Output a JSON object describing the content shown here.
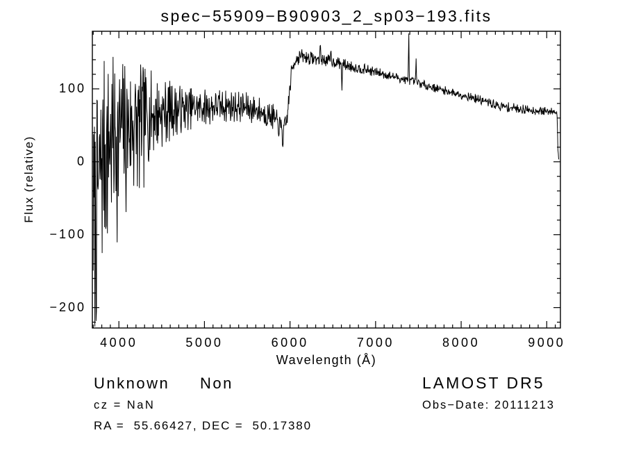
{
  "annotations": {
    "class_label": "Unknown",
    "subclass_label": "Non",
    "cz_line": "cz = NaN",
    "radec_line": "RA =  55.66427, DEC =  50.17380",
    "survey": "LAMOST DR5",
    "obsdate_line": "Obs−Date: 20111213"
  },
  "chart_data": {
    "type": "line",
    "title": "spec−55909−B90903_2_sp03−193.fits",
    "xlabel": "Wavelength (Å)",
    "ylabel": "Flux (relative)",
    "xlim": [
      3690,
      9160
    ],
    "ylim": [
      -228,
      179
    ],
    "xticks": [
      4000,
      5000,
      6000,
      7000,
      8000,
      9000
    ],
    "yticks": [
      -200,
      -100,
      0,
      100
    ],
    "x_major_step": 1000,
    "x_minor_step": 100,
    "y_major_step": 100,
    "y_minor_step": 20,
    "grid": false,
    "legend": false,
    "background": "#ffffff",
    "frame_color": "#000000",
    "line_color": "#000000",
    "series": [
      {
        "name": "spectrum",
        "synthesis": {
          "x_start": 3700,
          "x_end": 9140,
          "n_points": 1150,
          "seed": 7,
          "baseline": [
            [
              3700,
              -70
            ],
            [
              3760,
              -30
            ],
            [
              3820,
              25
            ],
            [
              3900,
              35
            ],
            [
              4000,
              45
            ],
            [
              4150,
              55
            ],
            [
              4300,
              62
            ],
            [
              4500,
              68
            ],
            [
              4700,
              72
            ],
            [
              5000,
              75
            ],
            [
              5300,
              77
            ],
            [
              5600,
              72
            ],
            [
              5800,
              62
            ],
            [
              5880,
              48
            ],
            [
              5930,
              42
            ],
            [
              5960,
              55
            ],
            [
              5990,
              90
            ],
            [
              6020,
              125
            ],
            [
              6060,
              140
            ],
            [
              6120,
              145
            ],
            [
              6250,
              142
            ],
            [
              6400,
              140
            ],
            [
              6550,
              136
            ],
            [
              6700,
              131
            ],
            [
              6900,
              126
            ],
            [
              7100,
              120
            ],
            [
              7300,
              114
            ],
            [
              7500,
              108
            ],
            [
              7700,
              101
            ],
            [
              7900,
              95
            ],
            [
              8100,
              89
            ],
            [
              8300,
              82
            ],
            [
              8450,
              76
            ],
            [
              8600,
              74
            ],
            [
              8800,
              71
            ],
            [
              9000,
              69
            ],
            [
              9100,
              70
            ],
            [
              9120,
              68
            ],
            [
              9130,
              20
            ],
            [
              9140,
              3
            ]
          ],
          "noise_amp": [
            [
              3700,
              140
            ],
            [
              3760,
              130
            ],
            [
              3850,
              115
            ],
            [
              3950,
              105
            ],
            [
              4050,
              98
            ],
            [
              4200,
              80
            ],
            [
              4350,
              65
            ],
            [
              4500,
              50
            ],
            [
              4650,
              38
            ],
            [
              4800,
              30
            ],
            [
              5000,
              26
            ],
            [
              5300,
              23
            ],
            [
              5600,
              21
            ],
            [
              5800,
              18
            ],
            [
              5950,
              16
            ],
            [
              6050,
              11
            ],
            [
              6300,
              9
            ],
            [
              6600,
              8
            ],
            [
              7000,
              7
            ],
            [
              7500,
              6
            ],
            [
              8000,
              6
            ],
            [
              8500,
              7
            ],
            [
              9000,
              6
            ],
            [
              9140,
              3
            ]
          ],
          "neg_bias_below": 4300,
          "neg_bias_factor": 1.5,
          "clamp": [
            -226,
            176
          ],
          "spikes": [
            [
              5915,
              -22
            ],
            [
              6355,
              22
            ],
            [
              6480,
              14
            ],
            [
              6605,
              -36
            ],
            [
              7390,
              66
            ],
            [
              7475,
              28
            ]
          ]
        }
      }
    ]
  }
}
